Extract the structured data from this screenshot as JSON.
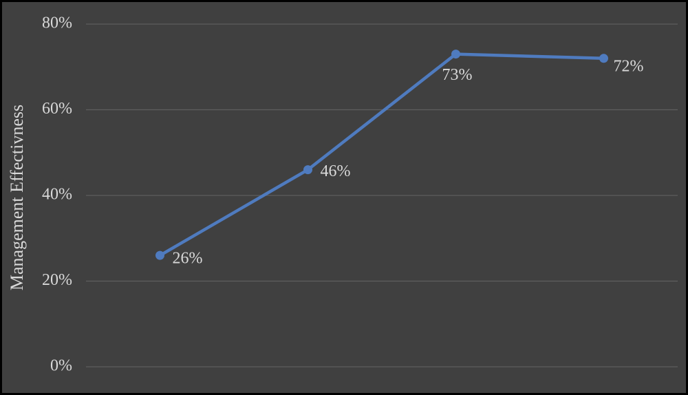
{
  "chart_data": {
    "type": "line",
    "y_label": "Management Effectivness",
    "categories": [
      null,
      null,
      null,
      null
    ],
    "values": [
      26,
      46,
      73,
      72
    ],
    "value_labels": [
      "26%",
      "46%",
      "73%",
      "72%"
    ],
    "color": "#4f7bbf",
    "ylim": [
      0,
      80
    ],
    "yticks": [
      {
        "value": 0,
        "label": "0%"
      },
      {
        "value": 20,
        "label": "20%"
      },
      {
        "value": 40,
        "label": "40%"
      },
      {
        "value": 60,
        "label": "60%"
      },
      {
        "value": 80,
        "label": "80%"
      }
    ],
    "grid": true
  }
}
